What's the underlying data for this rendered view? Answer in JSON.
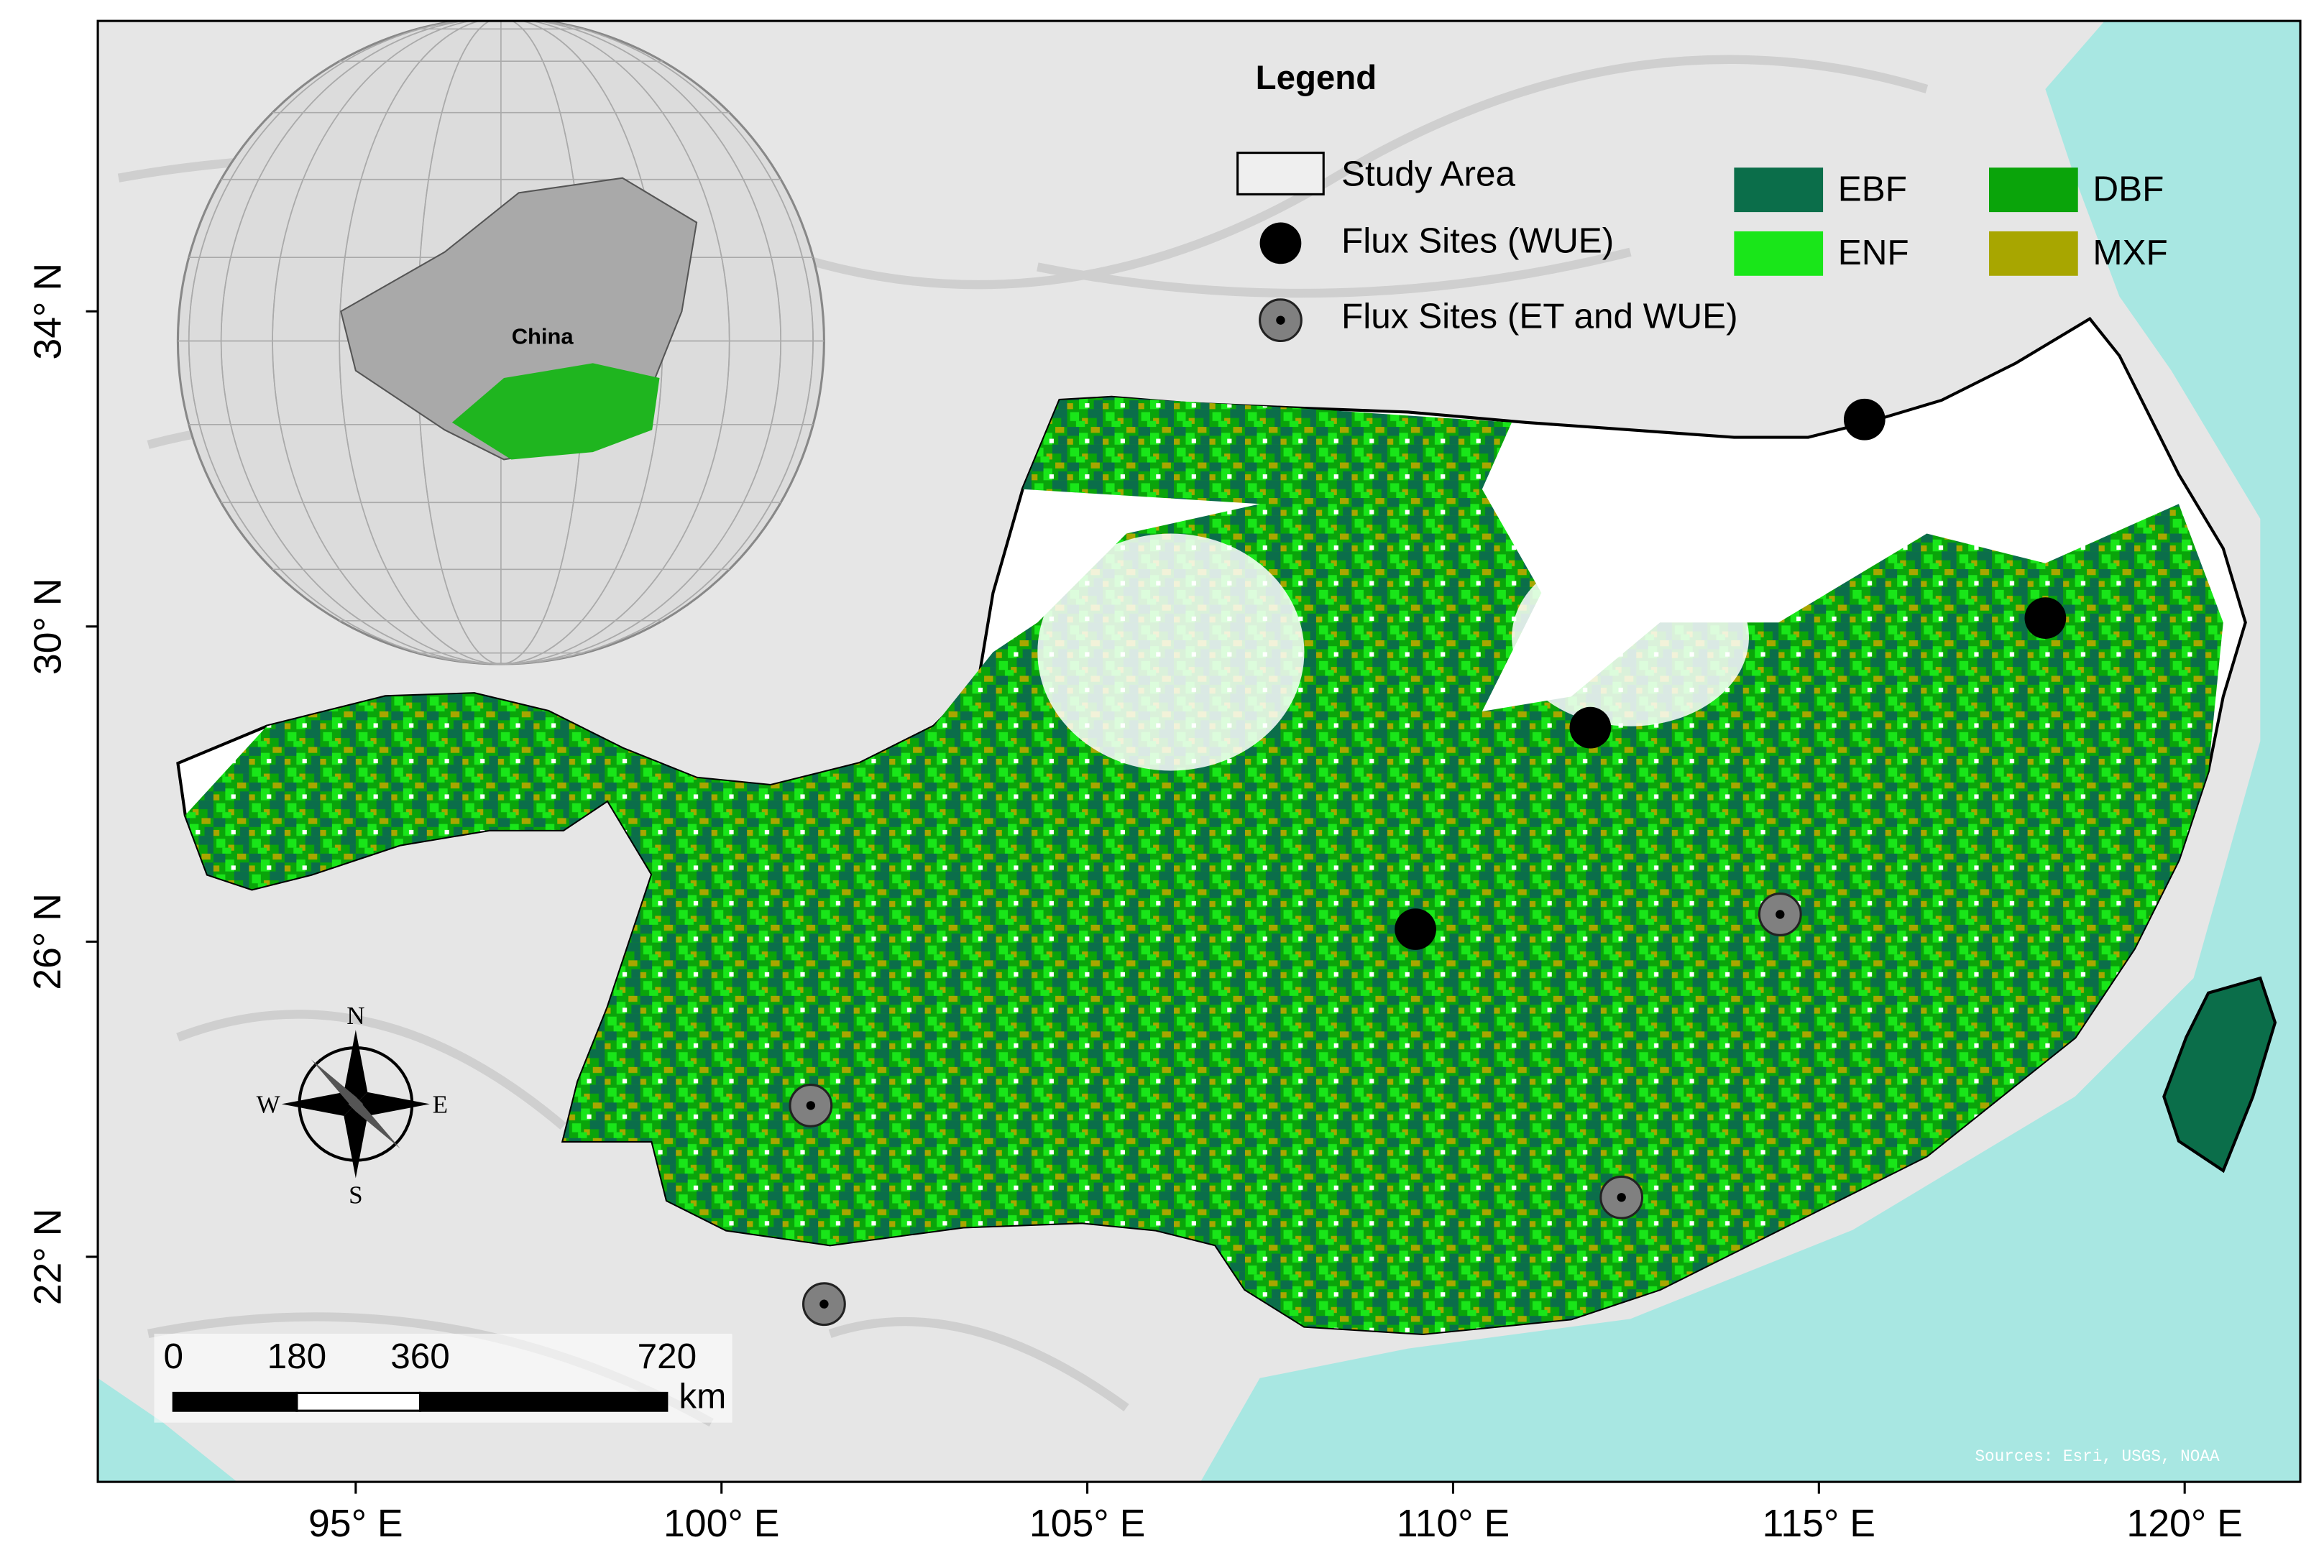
{
  "legend": {
    "title": "Legend",
    "study_area": "Study Area",
    "flux_wue": "Flux Sites (WUE)",
    "flux_et_wue": "Flux Sites (ET and WUE)",
    "forest_types": [
      {
        "name": "EBF",
        "color": "#0b6e4a"
      },
      {
        "name": "DBF",
        "color": "#0aa40a"
      },
      {
        "name": "ENF",
        "color": "#19e619"
      },
      {
        "name": "MXF",
        "color": "#a8a600"
      }
    ]
  },
  "lat_labels": [
    "34° N",
    "30° N",
    "26° N",
    "22° N"
  ],
  "lon_labels": [
    "95° E",
    "100° E",
    "105° E",
    "110° E",
    "115° E",
    "120° E"
  ],
  "inset": {
    "label": "China"
  },
  "scale_bar": {
    "labels": [
      0,
      180,
      360,
      720
    ],
    "unit": "km"
  },
  "compass": [
    "N",
    "E",
    "S",
    "W"
  ],
  "credit": "Sources: Esri, USGS, NOAA"
}
